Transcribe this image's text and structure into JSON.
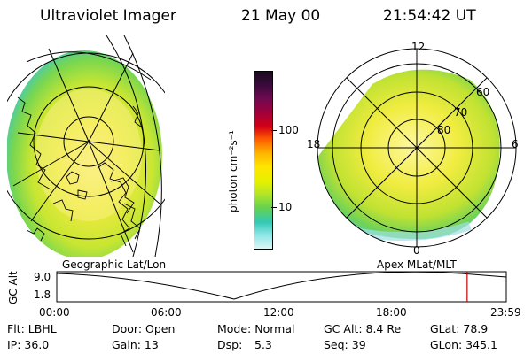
{
  "header": {
    "instrument": "Ultraviolet Imager",
    "date": "21 May 00",
    "time": "21:54:42 UT"
  },
  "left_panel": {
    "caption": "Geographic Lat/Lon"
  },
  "right_panel": {
    "caption": "Apex MLat/MLT",
    "mlt_labels": [
      "12",
      "18",
      "6",
      "0"
    ],
    "lat_labels": [
      "60",
      "70",
      "80"
    ]
  },
  "colorbar": {
    "unit_label": "photon cm⁻²s⁻¹",
    "tick_labels": [
      "100",
      "10"
    ],
    "colors": [
      "#1a0a20",
      "#3c0a3c",
      "#6e0a50",
      "#a0003c",
      "#d20014",
      "#ff5a00",
      "#ffb400",
      "#ffe600",
      "#e6f000",
      "#b4e628",
      "#64d250",
      "#32c8b4",
      "#8ce6e6",
      "#dcf5f5"
    ]
  },
  "timeline": {
    "axis_label": "GC Alt",
    "ymax_label": "9.0",
    "ymin_label": "1.8",
    "ticks": [
      "00:00",
      "06:00",
      "12:00",
      "18:00",
      "23:59"
    ],
    "marker_time_hours": 21.91,
    "marker_color": "#c00000"
  },
  "info": {
    "filter": "Flt: LBHL",
    "door": "Door: Open",
    "mode": "Mode: Normal",
    "gc_alt": "GC Alt: 8.4 Re",
    "glat": "GLat: 78.9",
    "ip": "IP: 36.0",
    "gain": "Gain: 13",
    "dsp_label": "Dsp:",
    "dsp_value": "5.3",
    "seq": "Seq: 39",
    "glon": "GLon: 345.1"
  }
}
